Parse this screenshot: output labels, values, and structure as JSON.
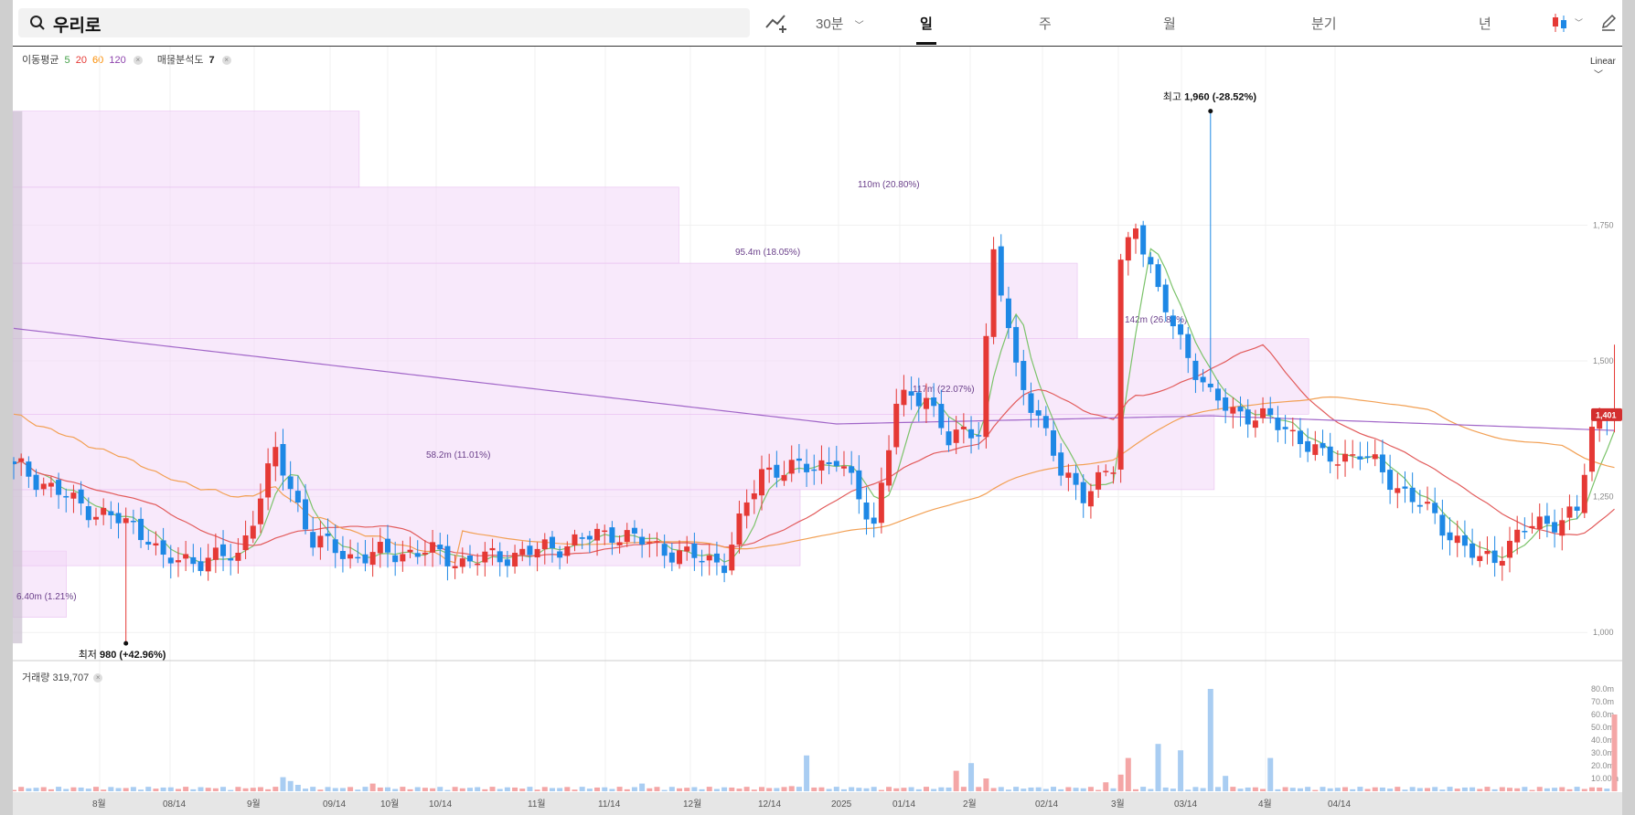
{
  "search": {
    "query": "우리로"
  },
  "toolbar": {
    "chart_type_icon": "line-chart-icon",
    "interval_label": "30분",
    "tabs": [
      {
        "label": "일",
        "active": true
      },
      {
        "label": "주",
        "active": false
      },
      {
        "label": "월",
        "active": false
      },
      {
        "label": "분기",
        "active": false
      },
      {
        "label": "년",
        "active": false
      }
    ],
    "candle_icon": "candlestick-icon",
    "edit_icon": "pencil-icon"
  },
  "legend": {
    "ma_label": "이동평균",
    "ma_periods": [
      {
        "label": "5",
        "color": "#43a047"
      },
      {
        "label": "20",
        "color": "#e53935"
      },
      {
        "label": "60",
        "color": "#fb8c00"
      },
      {
        "label": "120",
        "color": "#8e44ad"
      }
    ],
    "volume_profile_label": "매물분석도",
    "volume_profile_value": "7"
  },
  "scale_toggle": "Linear",
  "colors": {
    "up": "#e53935",
    "down": "#1e88e5",
    "profile": "#f3d7f8",
    "ma5": "#7cc36b",
    "ma20": "#e25b5b",
    "ma60": "#f2a054",
    "ma120": "#a166c8"
  },
  "chart_data": {
    "type": "candlestick",
    "title": "",
    "y_axis": {
      "min": 960,
      "max": 2020,
      "ticks": [
        "1,000",
        "1,250",
        "1,500",
        "1,750"
      ]
    },
    "x_ticks": [
      "8월",
      "08/14",
      "9월",
      "09/14",
      "10월",
      "10/14",
      "11월",
      "11/14",
      "12월",
      "12/14",
      "2025",
      "01/14",
      "2월",
      "02/14",
      "3월",
      "03/14",
      "4월",
      "04/14"
    ],
    "price_anchors": [
      [
        0,
        1310
      ],
      [
        8,
        1240
      ],
      [
        15,
        1200
      ],
      [
        18,
        1180
      ],
      [
        20,
        1130
      ],
      [
        30,
        1140
      ],
      [
        35,
        1330
      ],
      [
        40,
        1170
      ],
      [
        45,
        1140
      ],
      [
        55,
        1150
      ],
      [
        60,
        1130
      ],
      [
        70,
        1150
      ],
      [
        80,
        1185
      ],
      [
        90,
        1140
      ],
      [
        95,
        1130
      ],
      [
        100,
        1300
      ],
      [
        105,
        1300
      ],
      [
        110,
        1320
      ],
      [
        115,
        1200
      ],
      [
        118,
        1420
      ],
      [
        122,
        1440
      ],
      [
        125,
        1350
      ],
      [
        129,
        1380
      ],
      [
        131,
        1700
      ],
      [
        134,
        1480
      ],
      [
        137,
        1400
      ],
      [
        140,
        1290
      ],
      [
        143,
        1260
      ],
      [
        147,
        1300
      ],
      [
        148,
        1680
      ],
      [
        150,
        1760
      ],
      [
        153,
        1620
      ],
      [
        156,
        1540
      ],
      [
        160,
        1430
      ],
      [
        165,
        1400
      ],
      [
        170,
        1380
      ],
      [
        175,
        1320
      ],
      [
        180,
        1330
      ],
      [
        185,
        1270
      ],
      [
        190,
        1210
      ],
      [
        196,
        1130
      ],
      [
        198,
        1140
      ],
      [
        202,
        1190
      ],
      [
        209,
        1220
      ],
      [
        211,
        1370
      ],
      [
        214,
        1430
      ]
    ],
    "high_annotation": {
      "label": "최고",
      "value": "1,960",
      "change": "(-28.52%)"
    },
    "low_annotation": {
      "label": "최저",
      "value": "980",
      "change": "(+42.96%)"
    },
    "current_price": "1,401",
    "volume_profile": [
      {
        "label": "",
        "top": 1150,
        "bottom": 1028,
        "extent": 0.034
      },
      {
        "label": "6.40m (1.21%)",
        "top": 1000,
        "bottom": 0,
        "extent": 0
      },
      {
        "label": "58.2m (11.01%)",
        "top": 1263,
        "bottom": 1123,
        "extent": 0.5
      },
      {
        "label": "117m (22.07%)",
        "top": 1402,
        "bottom": 1263,
        "extent": 0.763
      },
      {
        "label": "142m (26.85%)",
        "top": 1541,
        "bottom": 1402,
        "extent": 0.823
      },
      {
        "label": "95.4m (18.05%)",
        "top": 1680,
        "bottom": 1541,
        "extent": 0.676
      },
      {
        "label": "110m (20.80%)",
        "top": 1820,
        "bottom": 1680,
        "extent": 0.423
      },
      {
        "label": "",
        "top": 1960,
        "bottom": 1820,
        "extent": 0.22
      }
    ],
    "volume": {
      "label": "거래량",
      "value": "319,707",
      "ticks": [
        "10.00m",
        "20.0m",
        "30.0m",
        "40.0m",
        "50.0m",
        "60.0m",
        "70.0m",
        "80.0m"
      ],
      "spikes": [
        [
          36,
          11
        ],
        [
          37,
          8
        ],
        [
          38,
          5
        ],
        [
          48,
          6
        ],
        [
          84,
          6
        ],
        [
          104,
          4
        ],
        [
          106,
          28
        ],
        [
          126,
          16
        ],
        [
          128,
          22
        ],
        [
          130,
          10
        ],
        [
          146,
          7
        ],
        [
          148,
          13
        ],
        [
          149,
          26
        ],
        [
          153,
          37
        ],
        [
          156,
          32
        ],
        [
          160,
          80
        ],
        [
          162,
          12
        ],
        [
          168,
          26
        ],
        [
          214,
          60
        ]
      ]
    }
  }
}
